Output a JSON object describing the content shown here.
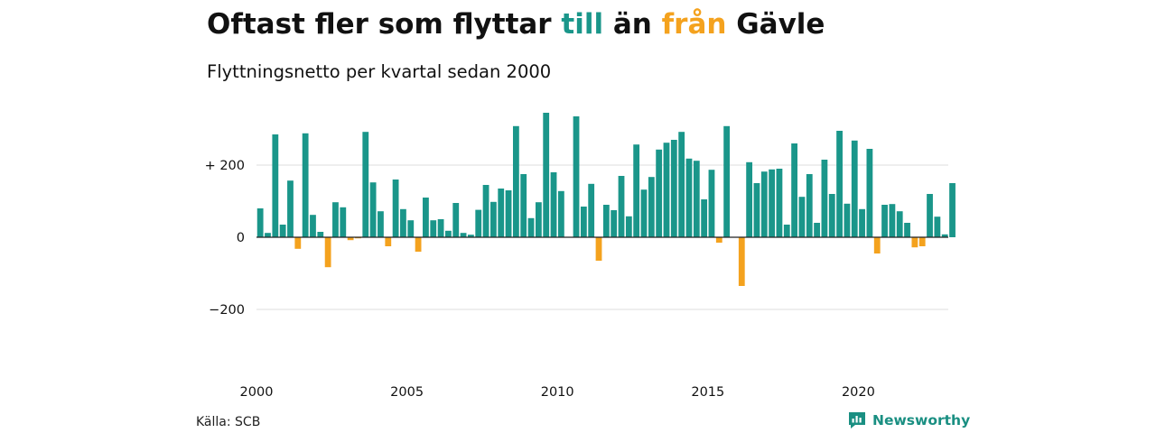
{
  "title": {
    "part1": "Oftast fler som flyttar ",
    "part2": "till",
    "part3": " än ",
    "part4": "från",
    "part5": " Gävle"
  },
  "subtitle": "Flyttningsnetto per kvartal sedan 2000",
  "source": "Källa: SCB",
  "brand": {
    "name": "Newsworthy",
    "icon": "newsworthy-logo-icon"
  },
  "colors": {
    "positive": "#1a968a",
    "negative": "#f4a21e",
    "grid": "#dddddd",
    "zero_line": "#222222",
    "text": "#111111"
  },
  "chart_data": {
    "type": "bar",
    "title": "Flyttningsnetto per kvartal sedan 2000",
    "xlabel": "",
    "ylabel": "",
    "x_start": "2000-Q1",
    "frequency": "quarterly",
    "ylim": [
      -300,
      400
    ],
    "yticks": [
      {
        "value": 200,
        "label": "+ 200"
      },
      {
        "value": 0,
        "label": "0"
      },
      {
        "value": -200,
        "label": "−200"
      }
    ],
    "xticks": [
      "2000",
      "2005",
      "2010",
      "2015",
      "2020"
    ],
    "grid": true,
    "values": [
      80,
      12,
      285,
      35,
      157,
      -32,
      288,
      62,
      15,
      -83,
      97,
      83,
      -8,
      -3,
      292,
      152,
      72,
      -25,
      160,
      78,
      47,
      -40,
      110,
      47,
      50,
      18,
      95,
      12,
      7,
      76,
      145,
      98,
      135,
      130,
      308,
      175,
      53,
      97,
      345,
      180,
      128,
      0,
      335,
      85,
      148,
      -65,
      90,
      75,
      170,
      58,
      257,
      132,
      167,
      243,
      262,
      270,
      292,
      218,
      212,
      105,
      187,
      -15,
      308,
      0,
      -135,
      208,
      150,
      182,
      188,
      190,
      35,
      260,
      112,
      175,
      40,
      215,
      120,
      295,
      93,
      268,
      78,
      245,
      -45,
      90,
      92,
      72,
      40,
      -28,
      -25,
      120,
      57,
      8,
      150
    ]
  }
}
